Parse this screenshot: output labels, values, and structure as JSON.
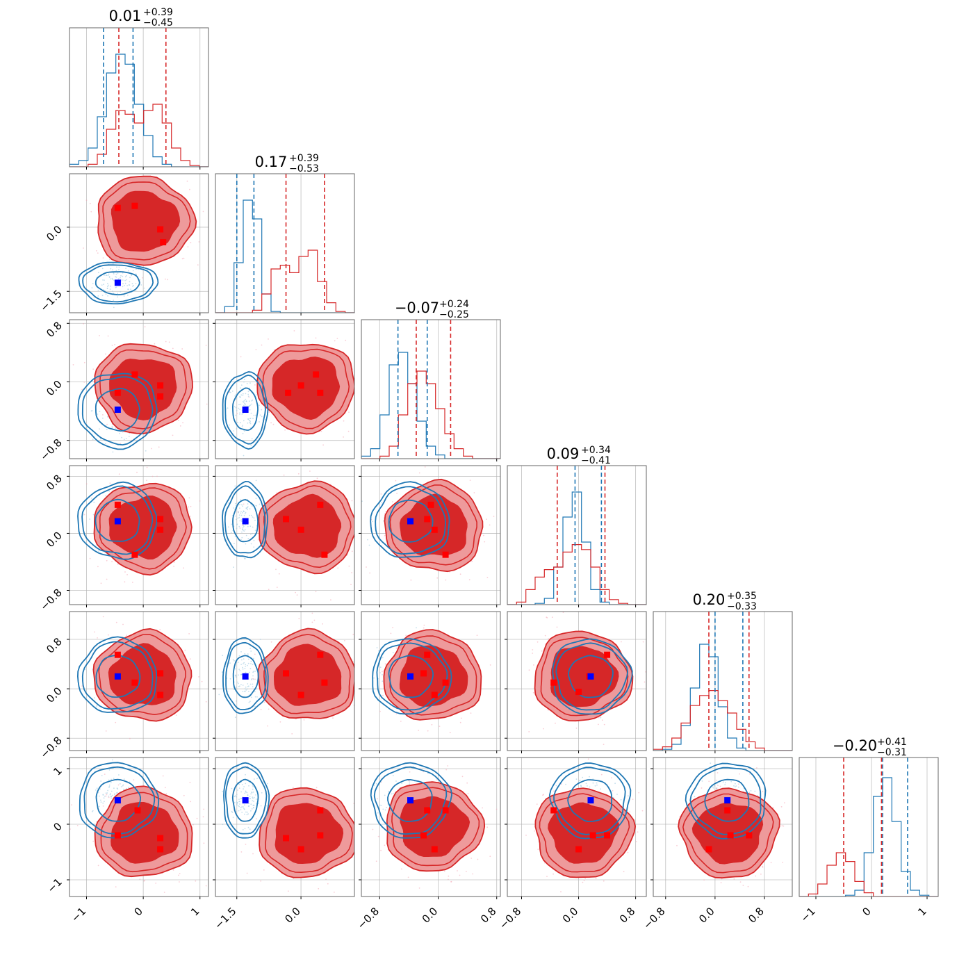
{
  "chart_data": {
    "type": "corner",
    "title": "",
    "colors": {
      "red": "#d62728",
      "red_fill": "#ee9a9b",
      "red_dark": "#d62728",
      "blue": "#1f77b4",
      "marker_red": "#ff0000",
      "marker_blue": "#0000ff",
      "grid": "#b0b0b0"
    },
    "params": [
      {
        "title_value": "0.01",
        "title_plus": "+0.39",
        "title_minus": "−0.45",
        "range": [
          -1.3,
          1.15
        ],
        "ticks": [
          -1,
          0,
          1
        ],
        "tick_labels": [
          "−1",
          "0",
          "1"
        ],
        "blue_lines": [
          -0.7,
          -0.18
        ],
        "red_lines": [
          -0.43,
          0.4
        ]
      },
      {
        "title_value": "0.17",
        "title_plus": "+0.39",
        "title_minus": "−0.53",
        "range": [
          -2.0,
          1.25
        ],
        "ticks": [
          -1.5,
          0.0
        ],
        "tick_labels": [
          "−1.5",
          "0.0"
        ],
        "blue_lines": [
          -1.5,
          -1.1
        ],
        "red_lines": [
          -0.35,
          0.55
        ]
      },
      {
        "title_value": "−0.07",
        "title_plus": "+0.24",
        "title_minus": "−0.25",
        "range": [
          -1.05,
          0.85
        ],
        "ticks": [
          -0.8,
          0.0,
          0.8
        ],
        "tick_labels": [
          "−0.8",
          "0.0",
          "0.8"
        ],
        "blue_lines": [
          -0.55,
          -0.15
        ],
        "red_lines": [
          -0.3,
          0.17
        ]
      },
      {
        "title_value": "0.09",
        "title_plus": "+0.34",
        "title_minus": "−0.41",
        "range": [
          -1.0,
          0.95
        ],
        "ticks": [
          -0.8,
          0.0,
          0.8
        ],
        "tick_labels": [
          "−0.8",
          "0.0",
          "0.8"
        ],
        "blue_lines": [
          -0.05,
          0.32
        ],
        "red_lines": [
          -0.3,
          0.37
        ]
      },
      {
        "title_value": "0.20",
        "title_plus": "+0.35",
        "title_minus": "−0.33",
        "range": [
          -1.0,
          1.25
        ],
        "ticks": [
          -0.8,
          0.0,
          0.8
        ],
        "tick_labels": [
          "−0.8",
          "0.0",
          "0.8"
        ],
        "blue_lines": [
          0.0,
          0.45
        ],
        "red_lines": [
          -0.1,
          0.55
        ]
      },
      {
        "title_value": "−0.20",
        "title_plus": "+0.41",
        "title_minus": "−0.31",
        "range": [
          -1.3,
          1.2
        ],
        "ticks": [
          -1,
          0,
          1
        ],
        "tick_labels": [
          "−1",
          "0",
          "1"
        ],
        "blue_lines": [
          0.2,
          0.65
        ],
        "red_lines": [
          -0.5,
          0.18
        ]
      }
    ],
    "hist_blue": [
      [
        0.02,
        0.05,
        0.15,
        0.4,
        0.75,
        0.9,
        0.82,
        0.5,
        0.25,
        0.08,
        0.02,
        0,
        0,
        0,
        0
      ],
      [
        0,
        0.05,
        0.4,
        0.9,
        0.75,
        0.15,
        0.01,
        0,
        0,
        0,
        0,
        0,
        0,
        0,
        0
      ],
      [
        0.02,
        0.08,
        0.35,
        0.75,
        0.85,
        0.6,
        0.3,
        0.1,
        0.03,
        0,
        0,
        0,
        0,
        0,
        0
      ],
      [
        0,
        0,
        0,
        0.01,
        0.05,
        0.3,
        0.7,
        0.9,
        0.5,
        0.12,
        0.02,
        0,
        0,
        0,
        0
      ],
      [
        0,
        0.01,
        0.05,
        0.2,
        0.5,
        0.85,
        0.75,
        0.35,
        0.1,
        0.02,
        0,
        0,
        0,
        0,
        0
      ],
      [
        0,
        0,
        0,
        0,
        0,
        0.01,
        0.05,
        0.35,
        0.8,
        0.95,
        0.6,
        0.2,
        0.05,
        0.01,
        0
      ]
    ],
    "hist_red": [
      [
        0,
        0,
        0.02,
        0.1,
        0.3,
        0.45,
        0.42,
        0.35,
        0.45,
        0.5,
        0.35,
        0.15,
        0.05,
        0.01,
        0
      ],
      [
        0,
        0,
        0,
        0,
        0.02,
        0.15,
        0.35,
        0.38,
        0.32,
        0.45,
        0.5,
        0.25,
        0.08,
        0.01,
        0
      ],
      [
        0,
        0,
        0.02,
        0.1,
        0.35,
        0.6,
        0.7,
        0.6,
        0.4,
        0.2,
        0.08,
        0.02,
        0,
        0,
        0
      ],
      [
        0,
        0.02,
        0.12,
        0.22,
        0.28,
        0.3,
        0.42,
        0.48,
        0.44,
        0.3,
        0.12,
        0.04,
        0.01,
        0,
        0
      ],
      [
        0.01,
        0.03,
        0.1,
        0.22,
        0.36,
        0.44,
        0.48,
        0.4,
        0.3,
        0.17,
        0.07,
        0.02,
        0,
        0,
        0
      ],
      [
        0,
        0.02,
        0.1,
        0.25,
        0.35,
        0.28,
        0.12,
        0.03,
        0,
        0,
        0,
        0,
        0,
        0,
        0
      ]
    ],
    "truth_blue": [
      -0.45,
      -1.3,
      -0.38,
      0.17,
      0.2,
      0.43
    ],
    "modes_red": [
      [
        -0.45,
        0.45,
        0.3,
        0.35
      ],
      [
        -0.2,
        0.5,
        0.3,
        0.1
      ],
      [
        0.3,
        -0.05,
        0.25,
        0.2
      ],
      [
        0.35,
        -0.35,
        0.2,
        0.15
      ]
    ],
    "red_markers": [
      [
        [
          1,
          0,
          [
            [
              -0.45,
              0.45
            ],
            [
              -0.15,
              0.5
            ],
            [
              0.3,
              -0.05
            ],
            [
              0.35,
              -0.35
            ]
          ]
        ]
      ],
      [
        [
          2,
          0,
          [
            [
              -0.45,
              -0.15
            ],
            [
              -0.15,
              0.1
            ],
            [
              0.3,
              -0.05
            ],
            [
              0.3,
              -0.2
            ]
          ]
        ],
        [
          2,
          1,
          [
            [
              -0.3,
              -0.15
            ],
            [
              0.0,
              -0.05
            ],
            [
              0.35,
              0.1
            ],
            [
              0.45,
              -0.15
            ]
          ]
        ]
      ],
      [
        [
          3,
          0,
          [
            [
              -0.45,
              0.4
            ],
            [
              -0.15,
              -0.3
            ],
            [
              0.3,
              0.2
            ],
            [
              0.3,
              0.05
            ]
          ]
        ],
        [
          3,
          1,
          [
            [
              -0.35,
              0.2
            ],
            [
              0.0,
              0.05
            ],
            [
              0.45,
              0.4
            ],
            [
              0.55,
              -0.3
            ]
          ]
        ],
        [
          3,
          2,
          [
            [
              -0.1,
              0.4
            ],
            [
              -0.15,
              0.2
            ],
            [
              0.1,
              -0.3
            ],
            [
              -0.05,
              0.05
            ]
          ]
        ]
      ],
      [
        [
          4,
          0,
          [
            [
              -0.45,
              0.55
            ],
            [
              -0.15,
              0.1
            ],
            [
              0.3,
              0.25
            ],
            [
              0.3,
              -0.1
            ]
          ]
        ],
        [
          4,
          1,
          [
            [
              -0.35,
              0.25
            ],
            [
              0.0,
              -0.1
            ],
            [
              0.45,
              0.55
            ],
            [
              0.55,
              0.1
            ]
          ]
        ],
        [
          4,
          2,
          [
            [
              -0.15,
              0.55
            ],
            [
              -0.2,
              0.25
            ],
            [
              0.1,
              0.1
            ],
            [
              -0.05,
              -0.1
            ]
          ]
        ],
        [
          4,
          3,
          [
            [
              -0.35,
              0.1
            ],
            [
              0.0,
              -0.05
            ],
            [
              0.4,
              0.55
            ],
            [
              0.15,
              0.2
            ]
          ]
        ]
      ],
      [
        [
          5,
          0,
          [
            [
              -0.45,
              -0.2
            ],
            [
              -0.1,
              0.25
            ],
            [
              0.3,
              -0.25
            ],
            [
              0.3,
              -0.45
            ]
          ]
        ],
        [
          5,
          1,
          [
            [
              -0.35,
              -0.25
            ],
            [
              0.0,
              -0.45
            ],
            [
              0.45,
              0.25
            ],
            [
              0.45,
              -0.2
            ]
          ]
        ],
        [
          5,
          2,
          [
            [
              -0.15,
              0.25
            ],
            [
              -0.2,
              -0.2
            ],
            [
              0.1,
              0.25
            ],
            [
              -0.05,
              -0.45
            ]
          ]
        ],
        [
          5,
          3,
          [
            [
              -0.35,
              0.25
            ],
            [
              0.0,
              -0.45
            ],
            [
              0.2,
              -0.2
            ],
            [
              0.4,
              -0.2
            ]
          ]
        ],
        [
          5,
          4,
          [
            [
              -0.1,
              -0.45
            ],
            [
              0.25,
              -0.2
            ],
            [
              0.55,
              -0.2
            ],
            [
              0.2,
              0.25
            ]
          ]
        ]
      ]
    ]
  }
}
